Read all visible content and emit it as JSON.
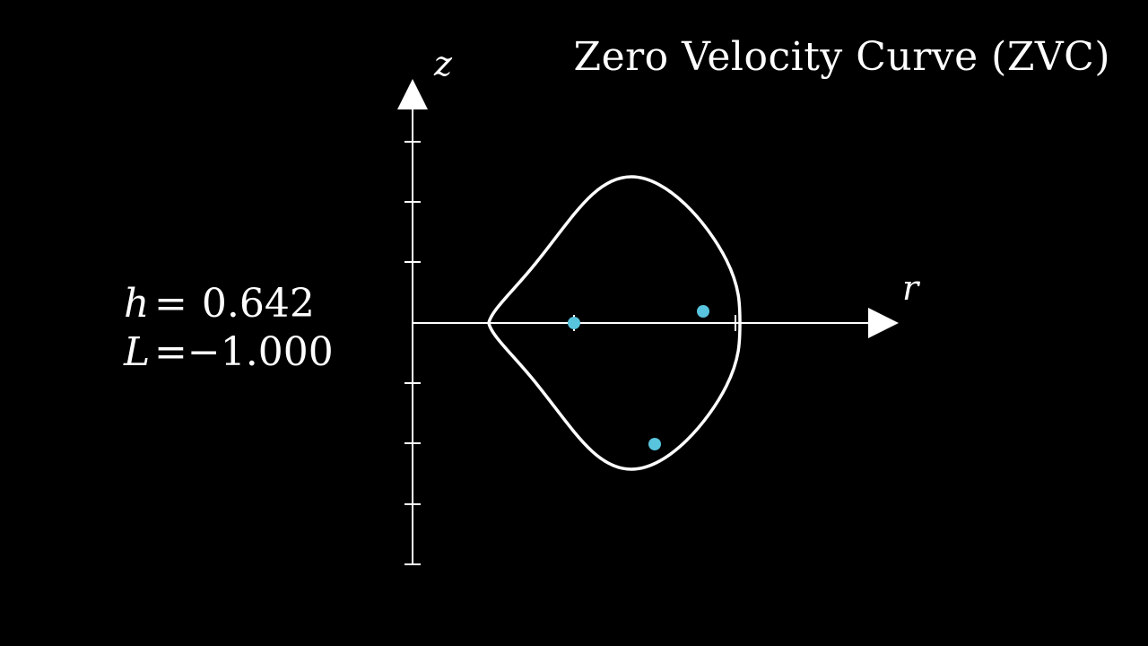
{
  "title": "Zero Velocity Curve (ZVC)",
  "parameters": {
    "h": {
      "symbol": "h",
      "equals": "=",
      "value": "0.642"
    },
    "L": {
      "symbol": "L",
      "equals": "=",
      "value": "−1.000"
    }
  },
  "axes": {
    "r": {
      "label": "r"
    },
    "z": {
      "label": "z"
    }
  },
  "colors": {
    "background": "#000000",
    "foreground": "#ffffff",
    "point": "#58c4dd"
  },
  "points_count": 3
}
